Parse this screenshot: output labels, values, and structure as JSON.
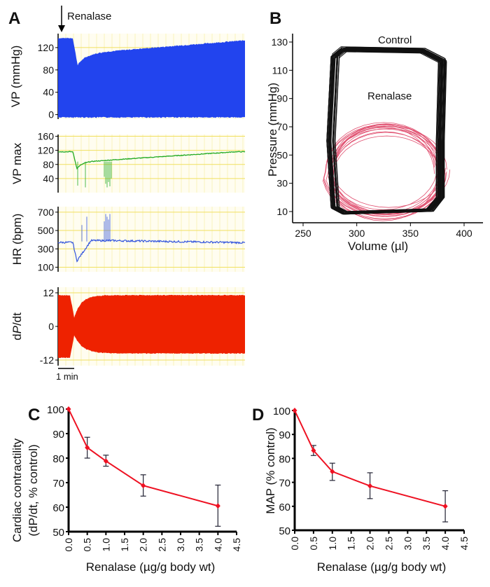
{
  "panel_labels": {
    "a": "A",
    "b": "B",
    "c": "C",
    "d": "D"
  },
  "chart_data": [
    {
      "panel": "A",
      "type": "line",
      "annotation": "Renalase",
      "scale_bar": "1 min",
      "colors": {
        "vp": "#2244ee",
        "vpmax": "#22aa22",
        "hr": "#3355dd",
        "dpdt": "#ee2200",
        "grid": "#f0e060"
      },
      "tracks": [
        {
          "ylabel": "VP (mmHg)",
          "yticks": [
            0,
            40,
            80,
            120
          ],
          "ylim": [
            -8,
            145
          ]
        },
        {
          "ylabel": "VP max",
          "yticks": [
            40,
            80,
            120,
            160
          ],
          "ylim": [
            0,
            165
          ]
        },
        {
          "ylabel": "HR (bpm)",
          "yticks": [
            100,
            300,
            500,
            700
          ],
          "ylim": [
            50,
            760
          ]
        },
        {
          "ylabel": "dP/dt",
          "ylabel_italic": "P",
          "yticks": [
            -12,
            0,
            12
          ],
          "ylim": [
            -14,
            14
          ]
        }
      ]
    },
    {
      "panel": "B",
      "type": "line",
      "xlabel": "Volume (µl)",
      "ylabel": "Pressure (mmHg)",
      "xticks": [
        250,
        300,
        350,
        400
      ],
      "yticks": [
        10,
        30,
        50,
        70,
        90,
        110,
        130
      ],
      "xlim": [
        240,
        410
      ],
      "ylim": [
        0,
        136
      ],
      "series": [
        {
          "name": "Control",
          "color": "#111111",
          "volume_range": [
            277,
            385
          ],
          "pressure_range": [
            8,
            127
          ]
        },
        {
          "name": "Renalase",
          "color": "#e05070",
          "volume_range": [
            268,
            386
          ],
          "pressure_range": [
            5,
            72
          ]
        }
      ]
    },
    {
      "panel": "C",
      "type": "line",
      "xlabel": "Renalase (µg/g body wt)",
      "ylabel_line1": "Cardiac contractility",
      "ylabel_line2": "(dP/dt, % control)",
      "xticks": [
        "0.0",
        "0.5",
        "1.0",
        "1.5",
        "2.0",
        "2.5",
        "3.0",
        "3.5",
        "4.0",
        "4.5"
      ],
      "yticks": [
        50,
        60,
        70,
        80,
        90,
        100
      ],
      "xlim": [
        0,
        4.5
      ],
      "ylim": [
        50,
        100
      ],
      "color": "#ee1122",
      "x": [
        0,
        0.5,
        1,
        2,
        4
      ],
      "y": [
        100,
        84.3,
        78.8,
        68.8,
        60.5
      ],
      "err_low": [
        100,
        80,
        76.7,
        64.5,
        52.2
      ],
      "err_high": [
        100,
        88.5,
        81.2,
        73.2,
        69
      ]
    },
    {
      "panel": "D",
      "type": "line",
      "xlabel": "Renalase (µg/g body wt)",
      "ylabel_line1": "MAP (% control)",
      "xticks": [
        "0.0",
        "0.5",
        "1.0",
        "1.5",
        "2.0",
        "2.5",
        "3.0",
        "3.5",
        "4.0",
        "4.5"
      ],
      "yticks": [
        50,
        60,
        70,
        80,
        90,
        100
      ],
      "xlim": [
        0,
        4.5
      ],
      "ylim": [
        50,
        100
      ],
      "color": "#ee1122",
      "x": [
        0,
        0.5,
        1,
        2,
        4
      ],
      "y": [
        100,
        83.3,
        74.5,
        68.5,
        60
      ],
      "err_low": [
        100,
        81.2,
        70.8,
        63.2,
        53.5
      ],
      "err_high": [
        100,
        85.4,
        78,
        74,
        66.5
      ]
    }
  ]
}
